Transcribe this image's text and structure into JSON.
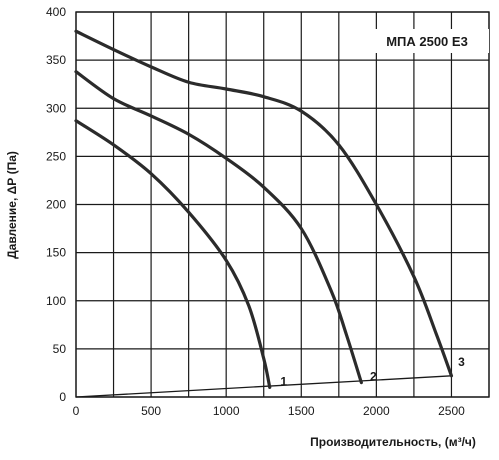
{
  "chart_data": {
    "type": "line",
    "title": "МПА 2500 Е3",
    "xlabel": "Производительность, (м³/ч)",
    "ylabel": "Давление, ΔР (Па)",
    "xlim": [
      0,
      2750
    ],
    "ylim": [
      0,
      400
    ],
    "x_ticks": [
      "0",
      "500",
      "1000",
      "1500",
      "2000",
      "2500"
    ],
    "y_ticks": [
      "0",
      "50",
      "100",
      "150",
      "200",
      "250",
      "300",
      "350",
      "400"
    ],
    "grid": true,
    "series": [
      {
        "name": "1",
        "x": [
          0,
          250,
          500,
          750,
          1000,
          1150,
          1250,
          1290
        ],
        "y": [
          287,
          262,
          232,
          192,
          142,
          95,
          40,
          10
        ]
      },
      {
        "name": "2",
        "x": [
          0,
          250,
          500,
          750,
          1000,
          1250,
          1500,
          1700,
          1800,
          1900
        ],
        "y": [
          338,
          310,
          292,
          273,
          248,
          218,
          175,
          110,
          65,
          15
        ]
      },
      {
        "name": "3",
        "x": [
          0,
          250,
          500,
          750,
          1000,
          1250,
          1500,
          1750,
          2000,
          2250,
          2400,
          2500
        ],
        "y": [
          380,
          361,
          343,
          327,
          320,
          312,
          297,
          262,
          200,
          125,
          65,
          22
        ]
      }
    ],
    "system_line": {
      "x": [
        0,
        2500
      ],
      "y": [
        0,
        22
      ]
    }
  }
}
